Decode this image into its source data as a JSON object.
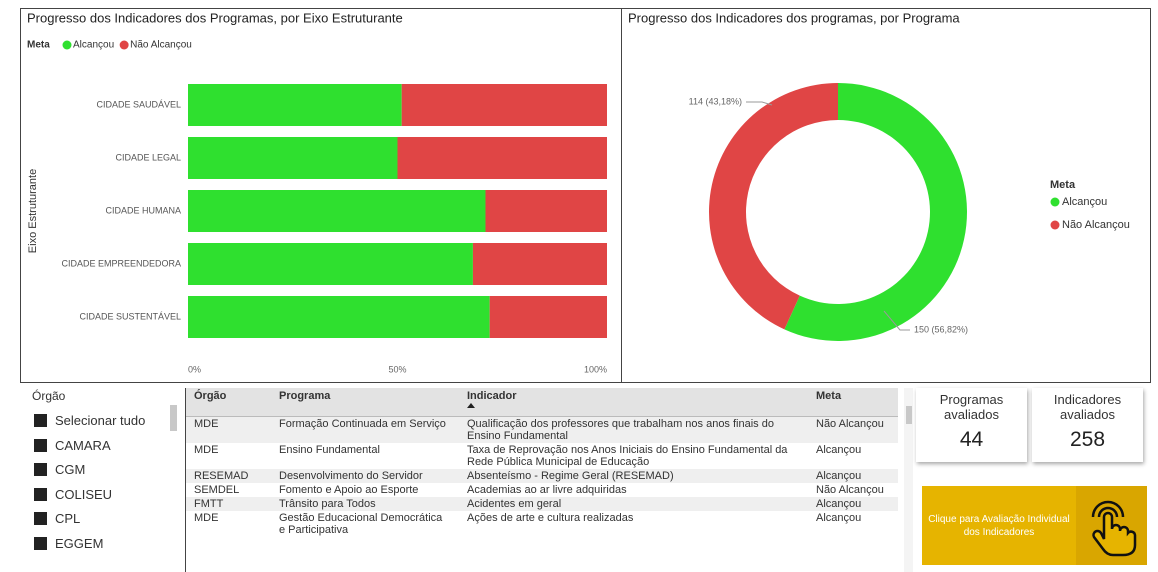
{
  "chart_data": [
    {
      "type": "bar",
      "orientation": "horizontal",
      "stacked": true,
      "title": "Progresso dos Indicadores dos Programas, por Eixo Estruturante",
      "legend_title": "Meta",
      "ylabel": "Eixo Estruturante",
      "categories": [
        "CIDADE SAUDÁVEL",
        "CIDADE LEGAL",
        "CIDADE HUMANA",
        "CIDADE EMPREENDEDORA",
        "CIDADE SUSTENTÁVEL"
      ],
      "series": [
        {
          "name": "Alcançou",
          "color": "#2fe02f",
          "values": [
            51,
            50,
            71,
            68,
            72
          ]
        },
        {
          "name": "Não Alcançou",
          "color": "#e04545",
          "values": [
            49,
            50,
            29,
            32,
            28
          ]
        }
      ],
      "xlim": [
        0,
        100
      ],
      "xticks": [
        {
          "value": 0,
          "label": "0%"
        },
        {
          "value": 50,
          "label": "50%"
        },
        {
          "value": 100,
          "label": "100%"
        }
      ]
    },
    {
      "type": "donut",
      "title": "Progresso dos Indicadores dos programas, por Programa",
      "legend_title": "Meta",
      "labels": [
        "Alcançou",
        "Não Alcançou"
      ],
      "values": [
        150,
        114
      ],
      "value_labels": [
        "150 (56,82%)",
        "114 (43,18%)"
      ],
      "colors": [
        "#2fe02f",
        "#e04545"
      ]
    }
  ],
  "slicer": {
    "title": "Órgão",
    "items": [
      "Selecionar tudo",
      "CAMARA",
      "CGM",
      "COLISEU",
      "CPL",
      "EGGEM"
    ]
  },
  "table": {
    "columns": [
      "Órgão",
      "Programa",
      "Indicador",
      "Meta"
    ],
    "rows": [
      [
        "MDE",
        "Formação Continuada em Serviço",
        "Qualificação dos professores que trabalham nos anos finais do Ensino Fundamental",
        "Não Alcançou"
      ],
      [
        "MDE",
        "Ensino Fundamental",
        "Taxa de Reprovação nos Anos Iniciais do Ensino Fundamental da Rede Pública Municipal de Educação",
        "Alcançou"
      ],
      [
        "RESEMAD",
        "Desenvolvimento do Servidor",
        "Absenteísmo - Regime Geral (RESEMAD)",
        "Alcançou"
      ],
      [
        "SEMDEL",
        "Fomento e Apoio ao Esporte",
        "Academias ao ar livre adquiridas",
        "Não Alcançou"
      ],
      [
        "FMTT",
        "Trânsito para Todos",
        "Acidentes em geral",
        "Alcançou"
      ],
      [
        "MDE",
        "Gestão Educacional Democrática e Participativa",
        "Ações de arte e cultura realizadas",
        "Alcançou"
      ]
    ]
  },
  "cards": [
    {
      "label": "Programas avaliados",
      "value": 44
    },
    {
      "label": "Indicadores avaliados",
      "value": 258
    }
  ],
  "button": {
    "label": "Clique para Avaliação Individual dos Indicadores"
  }
}
